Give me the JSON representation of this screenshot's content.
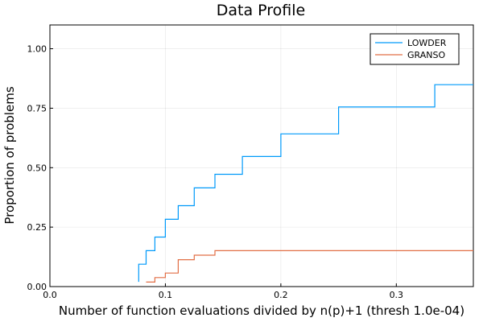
{
  "chart_data": {
    "type": "line",
    "step": true,
    "title": "Data Profile",
    "xlabel": "Number of function evaluations divided by n(p)+1 (thresh 1.0e-04)",
    "ylabel": "Proportion of problems",
    "xlim": [
      0,
      0.3667
    ],
    "ylim": [
      0,
      1.1
    ],
    "xticks": [
      0.0,
      0.1,
      0.2,
      0.3
    ],
    "xtick_labels": [
      "0.0",
      "0.1",
      "0.2",
      "0.3"
    ],
    "yticks": [
      0.0,
      0.25,
      0.5,
      0.75,
      1.0
    ],
    "ytick_labels": [
      "0.00",
      "0.25",
      "0.50",
      "0.75",
      "1.00"
    ],
    "grid": true,
    "legend_position": "top-right",
    "series": [
      {
        "name": "LOWDER",
        "color": "#009AFA",
        "x": [
          0.0769,
          0.0769,
          0.0833,
          0.0833,
          0.0909,
          0.0909,
          0.1,
          0.1,
          0.1111,
          0.1111,
          0.125,
          0.125,
          0.1429,
          0.1429,
          0.1667,
          0.1667,
          0.2,
          0.2,
          0.25,
          0.25,
          0.3333,
          0.3333,
          0.3667
        ],
        "y": [
          0.02,
          0.094,
          0.094,
          0.151,
          0.151,
          0.208,
          0.208,
          0.283,
          0.283,
          0.34,
          0.34,
          0.415,
          0.415,
          0.472,
          0.472,
          0.547,
          0.547,
          0.642,
          0.642,
          0.755,
          0.755,
          0.849,
          0.849
        ]
      },
      {
        "name": "GRANSO",
        "color": "#E26F46",
        "x": [
          0.0833,
          0.0909,
          0.0909,
          0.1,
          0.1,
          0.1111,
          0.1111,
          0.125,
          0.125,
          0.1429,
          0.1429,
          0.3667
        ],
        "y": [
          0.019,
          0.019,
          0.038,
          0.038,
          0.057,
          0.057,
          0.113,
          0.113,
          0.132,
          0.132,
          0.151,
          0.151
        ]
      }
    ]
  }
}
